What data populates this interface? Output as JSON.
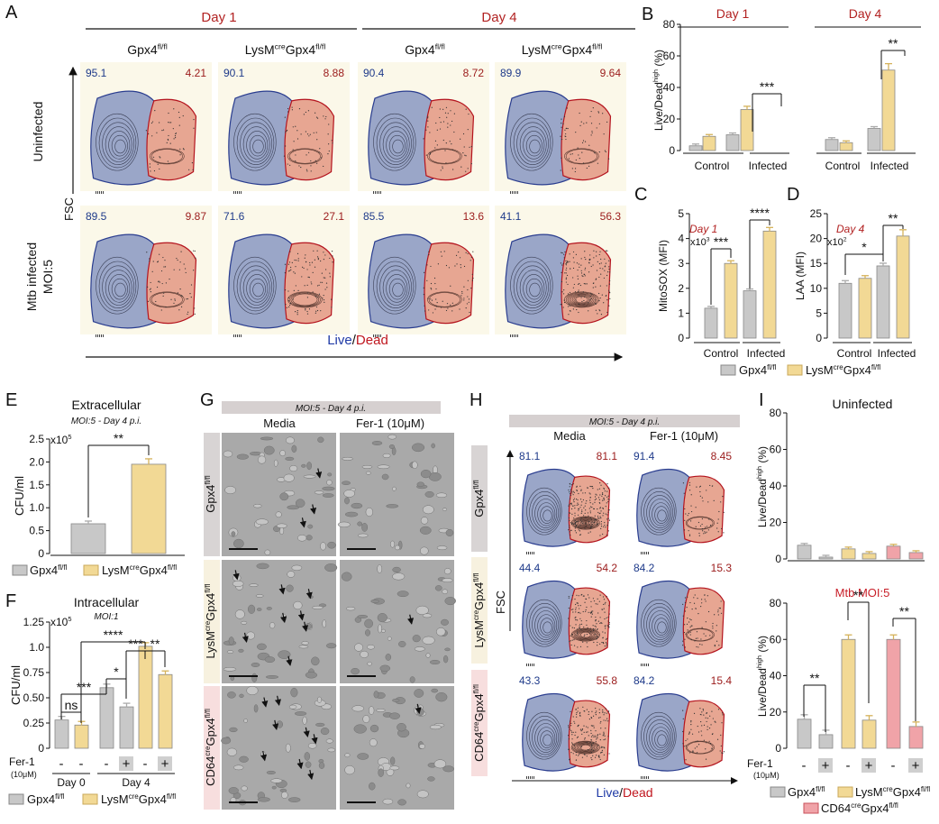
{
  "panels": {
    "A": {
      "letter": "A"
    },
    "B": {
      "letter": "B"
    },
    "C": {
      "letter": "C"
    },
    "D": {
      "letter": "D"
    },
    "E": {
      "letter": "E"
    },
    "F": {
      "letter": "F"
    },
    "G": {
      "letter": "G"
    },
    "H": {
      "letter": "H"
    },
    "I": {
      "letter": "I"
    }
  },
  "panel_a": {
    "day1": "Day 1",
    "day4": "Day 4",
    "col_labels": [
      "Gpx4",
      "LysM",
      "Gpx4",
      "Gpx4",
      "LysM",
      "Gpx4"
    ],
    "sup_flfl": "fl/fl",
    "sup_cre": "cre",
    "row1": "Uninfected",
    "row2_line1": "Mtb infected",
    "row2_line2": "MOI:5",
    "y_axis": "FSC",
    "x_live": "Live",
    "x_slash": "/",
    "x_dead": "Dead",
    "values": [
      [
        "95.1",
        "4.21"
      ],
      [
        "90.1",
        "8.88"
      ],
      [
        "90.4",
        "8.72"
      ],
      [
        "89.9",
        "9.64"
      ],
      [
        "89.5",
        "9.87"
      ],
      [
        "71.6",
        "27.1"
      ],
      [
        "85.5",
        "13.6"
      ],
      [
        "41.1",
        "56.3"
      ]
    ]
  },
  "colors": {
    "live_blue": "#1e3a8a",
    "dead_red": "#9b1b1b",
    "live_gate": "#9aa6c8",
    "dead_gate": "#e7a692",
    "control_bar": "#c8c8c8",
    "lysm_bar": "#f2d995",
    "cd64_bar": "#f0a3a8",
    "day_red": "#b22222"
  },
  "chart_data": [
    {
      "id": "B",
      "type": "bar",
      "title_day1": "Day 1",
      "title_day4": "Day 4",
      "ylabel": "Live/Dead",
      "ylabel_sup": "high",
      "ylabel_unit": "(%)",
      "ylim": [
        0,
        80
      ],
      "yticks": [
        "0",
        "20",
        "40",
        "60",
        "80"
      ],
      "categories": [
        "Control",
        "Infected",
        "Control",
        "Infected"
      ],
      "series": [
        {
          "name": "Gpx4fl/fl",
          "values": [
            3,
            10,
            7,
            14
          ]
        },
        {
          "name": "LysMcreGpx4fl/fl",
          "values": [
            9,
            26,
            5,
            51
          ]
        }
      ],
      "sig": [
        "***",
        "**"
      ]
    },
    {
      "id": "C",
      "type": "bar",
      "title": "Day 1",
      "ylabel": "MitoSOX (MFI)",
      "multiplier": "x10",
      "multiplier_exp": "3",
      "ylim": [
        0,
        5
      ],
      "yticks": [
        "0",
        "1",
        "2",
        "3",
        "4",
        "5"
      ],
      "categories": [
        "Control",
        "Infected"
      ],
      "series": [
        {
          "name": "Gpx4fl/fl",
          "values": [
            1.2,
            1.9
          ]
        },
        {
          "name": "LysMcreGpx4fl/fl",
          "values": [
            3.0,
            4.3
          ]
        }
      ],
      "sig": [
        "***",
        "****"
      ]
    },
    {
      "id": "D",
      "type": "bar",
      "title": "Day 4",
      "ylabel": "LAA (MFI)",
      "multiplier": "x10",
      "multiplier_exp": "2",
      "ylim": [
        0,
        25
      ],
      "yticks": [
        "0",
        "5",
        "10",
        "15",
        "20",
        "25"
      ],
      "categories": [
        "Control",
        "Infected"
      ],
      "series": [
        {
          "name": "Gpx4fl/fl",
          "values": [
            11,
            14.5
          ]
        },
        {
          "name": "LysMcreGpx4fl/fl",
          "values": [
            12,
            20.5
          ]
        }
      ],
      "sig": [
        "*",
        "**"
      ]
    },
    {
      "id": "E",
      "type": "bar",
      "title": "Extracellular",
      "subtitle": "MOI:5 - Day 4 p.i.",
      "ylabel": "CFU/ml",
      "multiplier": "x10",
      "multiplier_exp": "5",
      "ylim": [
        0,
        2.5
      ],
      "yticks": [
        "0",
        "0.5",
        "1.0",
        "1.5",
        "2.0",
        "2.5"
      ],
      "series": [
        {
          "name": "Gpx4fl/fl",
          "values": [
            0.65
          ]
        },
        {
          "name": "LysMcreGpx4fl/fl",
          "values": [
            1.95
          ]
        }
      ],
      "sig": [
        "**"
      ]
    },
    {
      "id": "F",
      "type": "bar",
      "title": "Intracellular",
      "subtitle": "MOI:1",
      "ylabel": "CFU/ml",
      "multiplier": "x10",
      "multiplier_exp": "5",
      "ylim": [
        0,
        1.25
      ],
      "yticks": [
        "0",
        "0.25",
        "0.50",
        "0.75",
        "1.0",
        "1.25"
      ],
      "categories": [
        "Day 0",
        "Day 4"
      ],
      "bars": [
        {
          "group": "Day 0",
          "series": "Gpx4fl/fl",
          "fer1": "-",
          "value": 0.28
        },
        {
          "group": "Day 0",
          "series": "LysMcreGpx4fl/fl",
          "fer1": "-",
          "value": 0.23
        },
        {
          "group": "Day 4",
          "series": "Gpx4fl/fl",
          "fer1": "-",
          "value": 0.6
        },
        {
          "group": "Day 4",
          "series": "Gpx4fl/fl",
          "fer1": "+",
          "value": 0.41
        },
        {
          "group": "Day 4",
          "series": "LysMcreGpx4fl/fl",
          "fer1": "-",
          "value": 1.01
        },
        {
          "group": "Day 4",
          "series": "LysMcreGpx4fl/fl",
          "fer1": "+",
          "value": 0.73
        }
      ],
      "sig": [
        "ns",
        "***",
        "*",
        "***",
        "****",
        "**"
      ],
      "fer_label": "Fer-1",
      "fer_unit": "(10μM)"
    },
    {
      "id": "I_top",
      "type": "bar",
      "title": "Uninfected",
      "ylabel": "Live/Dead",
      "ylabel_sup": "high",
      "ylabel_unit": "(%)",
      "ylim": [
        0,
        80
      ],
      "yticks": [
        "0",
        "20",
        "40",
        "60",
        "80"
      ],
      "bars": [
        {
          "series": "Gpx4fl/fl",
          "fer1": "-",
          "value": 7.5
        },
        {
          "series": "Gpx4fl/fl",
          "fer1": "+",
          "value": 1.0
        },
        {
          "series": "LysMcreGpx4fl/fl",
          "fer1": "-",
          "value": 5.5
        },
        {
          "series": "LysMcreGpx4fl/fl",
          "fer1": "+",
          "value": 3.0
        },
        {
          "series": "CD64creGpx4fl/fl",
          "fer1": "-",
          "value": 7.0
        },
        {
          "series": "CD64creGpx4fl/fl",
          "fer1": "+",
          "value": 3.5
        }
      ]
    },
    {
      "id": "I_bottom",
      "type": "bar",
      "title": "Mtb MOI:5",
      "ylabel": "Live/Dead",
      "ylabel_sup": "high",
      "ylabel_unit": "(%)",
      "ylim": [
        0,
        80
      ],
      "yticks": [
        "0",
        "20",
        "40",
        "60",
        "80"
      ],
      "bars": [
        {
          "series": "Gpx4fl/fl",
          "fer1": "-",
          "value": 16
        },
        {
          "series": "Gpx4fl/fl",
          "fer1": "+",
          "value": 7.5
        },
        {
          "series": "LysMcreGpx4fl/fl",
          "fer1": "-",
          "value": 60
        },
        {
          "series": "LysMcreGpx4fl/fl",
          "fer1": "+",
          "value": 15.5
        },
        {
          "series": "CD64creGpx4fl/fl",
          "fer1": "-",
          "value": 60
        },
        {
          "series": "CD64creGpx4fl/fl",
          "fer1": "+",
          "value": 12
        }
      ],
      "sig": [
        "**",
        "**",
        "**"
      ],
      "fer_label": "Fer-1",
      "fer_unit": "(10μM)"
    }
  ],
  "legend": {
    "gpx4": "Gpx4",
    "lysm": "LysM",
    "cd64": "CD64",
    "cre": "cre",
    "flfl": "fl/fl"
  },
  "panel_g": {
    "header": "MOI:5 - Day 4 p.i.",
    "col_media": "Media",
    "col_fer": "Fer-1 (10μM)",
    "rows": [
      "Gpx4",
      "LysMGpx4",
      "CD64Gpx4"
    ]
  },
  "panel_h": {
    "header": "MOI:5 - Day 4 p.i.",
    "col_media": "Media",
    "col_fer": "Fer-1 (10μM)",
    "y_axis": "FSC",
    "x_live": "Live",
    "x_slash": "/",
    "x_dead": "Dead",
    "values": [
      [
        "81.1",
        "81.1"
      ],
      [
        "91.4",
        "8.45"
      ],
      [
        "44.4",
        "54.2"
      ],
      [
        "84.2",
        "15.3"
      ],
      [
        "43.3",
        "55.8"
      ],
      [
        "84.2",
        "15.4"
      ]
    ]
  }
}
